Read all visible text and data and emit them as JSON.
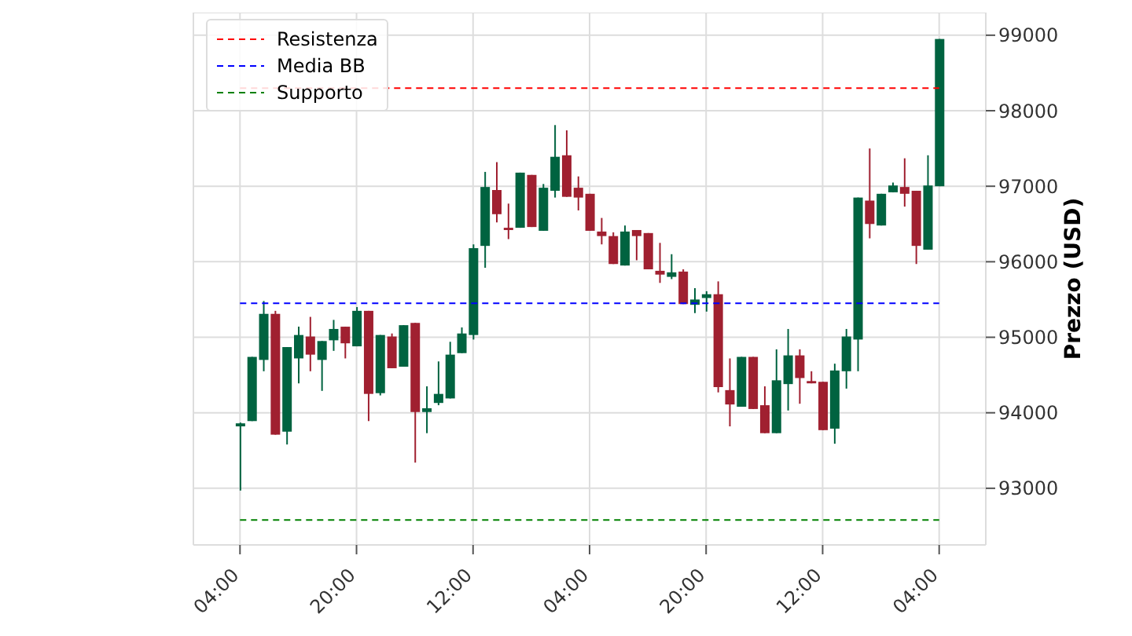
{
  "chart_data": {
    "type": "candlestick",
    "ylabel": "Prezzo (USD)",
    "categories": [
      "04:00",
      null,
      null,
      null,
      null,
      null,
      null,
      null,
      null,
      null,
      "20:00",
      null,
      null,
      null,
      null,
      null,
      null,
      null,
      null,
      null,
      "12:00",
      null,
      null,
      null,
      null,
      null,
      null,
      null,
      null,
      null,
      "04:00",
      null,
      null,
      null,
      null,
      null,
      null,
      null,
      null,
      null,
      "20:00",
      null,
      null,
      null,
      null,
      null,
      null,
      null,
      null,
      null,
      "12:00",
      null,
      null,
      null,
      null,
      null,
      null,
      null,
      null,
      null,
      "04:00"
    ],
    "ohlc": [
      [
        93820,
        93870,
        92970,
        93860
      ],
      [
        93890,
        94740,
        93890,
        94740
      ],
      [
        94700,
        95480,
        94550,
        95310
      ],
      [
        95310,
        95350,
        93710,
        93710
      ],
      [
        93750,
        94870,
        93580,
        94870
      ],
      [
        94720,
        95140,
        94390,
        95030
      ],
      [
        95010,
        95270,
        94550,
        94770
      ],
      [
        94700,
        94950,
        94290,
        94950
      ],
      [
        94960,
        95230,
        94820,
        95110
      ],
      [
        95140,
        95140,
        94720,
        94920
      ],
      [
        94880,
        95400,
        94880,
        95350
      ],
      [
        95350,
        95350,
        93890,
        94250
      ],
      [
        94260,
        95030,
        94230,
        95030
      ],
      [
        95010,
        95050,
        94590,
        94590
      ],
      [
        94610,
        95160,
        94610,
        95160
      ],
      [
        95190,
        95190,
        93340,
        94010
      ],
      [
        94010,
        94350,
        93730,
        94060
      ],
      [
        94130,
        94680,
        94100,
        94250
      ],
      [
        94190,
        94940,
        94190,
        94770
      ],
      [
        94790,
        95130,
        94790,
        95050
      ],
      [
        95030,
        96230,
        94970,
        96180
      ],
      [
        96210,
        97190,
        95920,
        96990
      ],
      [
        96950,
        97320,
        96520,
        96630
      ],
      [
        96450,
        96770,
        96300,
        96420
      ],
      [
        96450,
        97180,
        96450,
        97180
      ],
      [
        97150,
        97150,
        96460,
        96460
      ],
      [
        96410,
        97030,
        96410,
        96980
      ],
      [
        96940,
        97810,
        96850,
        97390
      ],
      [
        97410,
        97740,
        96860,
        96860
      ],
      [
        96980,
        97130,
        96680,
        96850
      ],
      [
        96900,
        96900,
        96410,
        96410
      ],
      [
        96400,
        96580,
        96230,
        96340
      ],
      [
        96340,
        96390,
        95970,
        95970
      ],
      [
        95950,
        96480,
        95950,
        96400
      ],
      [
        96420,
        96420,
        96020,
        96340
      ],
      [
        96380,
        96380,
        95900,
        95900
      ],
      [
        95880,
        96250,
        95720,
        95830
      ],
      [
        95800,
        96100,
        95770,
        95860
      ],
      [
        95870,
        95900,
        95440,
        95440
      ],
      [
        95430,
        95650,
        95320,
        95500
      ],
      [
        95520,
        95610,
        95340,
        95570
      ],
      [
        95570,
        95740,
        94270,
        94340
      ],
      [
        94300,
        94720,
        93820,
        94110
      ],
      [
        94080,
        94740,
        94080,
        94740
      ],
      [
        94740,
        94740,
        94050,
        94050
      ],
      [
        94100,
        94350,
        93730,
        93730
      ],
      [
        93730,
        94840,
        93730,
        94430
      ],
      [
        94380,
        95110,
        94030,
        94760
      ],
      [
        94760,
        94840,
        94120,
        94460
      ],
      [
        94420,
        94550,
        94390,
        94390
      ],
      [
        94410,
        94410,
        93770,
        93770
      ],
      [
        93790,
        94650,
        93590,
        94560
      ],
      [
        94550,
        95110,
        94320,
        95010
      ],
      [
        94970,
        96850,
        94550,
        96850
      ],
      [
        96810,
        97500,
        96310,
        96500
      ],
      [
        96480,
        96900,
        96480,
        96900
      ],
      [
        96920,
        97050,
        96920,
        97010
      ],
      [
        96990,
        97370,
        96730,
        96900
      ],
      [
        96940,
        96940,
        95970,
        96210
      ],
      [
        96160,
        97410,
        96160,
        97010
      ],
      [
        97000,
        98950,
        97000,
        98950
      ]
    ],
    "colors": [
      "#006340",
      "#006340",
      "#006340",
      "#a02030",
      "#006340",
      "#006340",
      "#a02030",
      "#006340",
      "#006340",
      "#a02030",
      "#006340",
      "#a02030",
      "#006340",
      "#a02030",
      "#006340",
      "#a02030",
      "#006340",
      "#006340",
      "#006340",
      "#006340",
      "#006340",
      "#006340",
      "#a02030",
      "#a02030",
      "#006340",
      "#a02030",
      "#006340",
      "#006340",
      "#a02030",
      "#a02030",
      "#a02030",
      "#a02030",
      "#a02030",
      "#006340",
      "#a02030",
      "#a02030",
      "#a02030",
      "#006340",
      "#a02030",
      "#006340",
      "#006340",
      "#a02030",
      "#a02030",
      "#006340",
      "#a02030",
      "#a02030",
      "#006340",
      "#006340",
      "#a02030",
      "#a02030",
      "#a02030",
      "#006340",
      "#006340",
      "#006340",
      "#a02030",
      "#006340",
      "#006340",
      "#a02030",
      "#a02030",
      "#006340",
      "#006340"
    ],
    "ylim": [
      92250,
      99300
    ],
    "yticks": [
      93000,
      94000,
      95000,
      96000,
      97000,
      98000,
      99000
    ],
    "ref_lines": [
      {
        "axis": "y",
        "value": 98300,
        "label": "Resistenza",
        "color": "#ff0000",
        "line_style": "dashed"
      },
      {
        "axis": "y",
        "value": 95450,
        "label": "Media BB",
        "color": "#0000ff",
        "line_style": "dashed"
      },
      {
        "axis": "y",
        "value": 92580,
        "label": "Supporto",
        "color": "#008000",
        "line_style": "dashed"
      }
    ],
    "grid": true,
    "legend": "top left"
  }
}
